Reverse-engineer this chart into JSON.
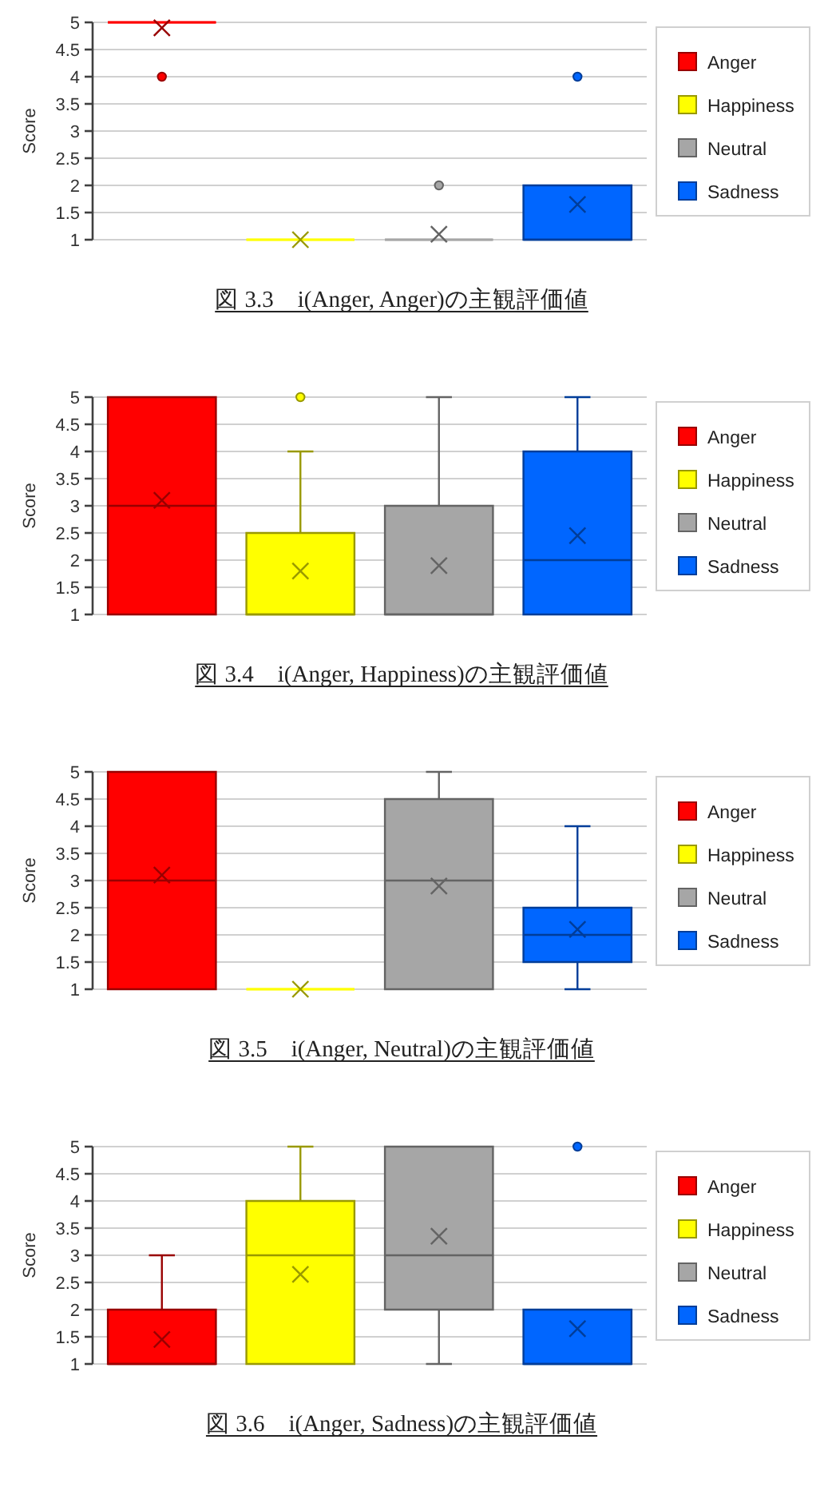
{
  "chart_data": [
    {
      "type": "box",
      "title": "図 3.3　i(Anger, Anger)の主観評価値",
      "ylabel": "Score",
      "categories": [
        null,
        null,
        null,
        null
      ],
      "ylim": [
        1,
        5
      ],
      "yticks": [
        1,
        1.5,
        2,
        2.5,
        3,
        3.5,
        4,
        4.5,
        5
      ],
      "grid": "y",
      "legend": "right",
      "marker": "cross",
      "series": [
        {
          "name": "Anger",
          "color": "#ff0000",
          "boxes": [
            {
              "low": 5,
              "q1": 5,
              "median": 5,
              "q3": 5,
              "high": 5,
              "mean": 4.9,
              "outliers": [
                4
              ]
            },
            null,
            null,
            null
          ]
        },
        {
          "name": "Happiness",
          "color": "#ffff00",
          "boxes": [
            null,
            {
              "low": 1,
              "q1": 1,
              "median": 1,
              "q3": 1,
              "high": 1,
              "mean": 1
            },
            null,
            null
          ]
        },
        {
          "name": "Neutral",
          "color": "#a6a6a6",
          "boxes": [
            null,
            null,
            {
              "low": 1,
              "q1": 1,
              "median": 1,
              "q3": 1,
              "high": 1,
              "mean": 1.1,
              "outliers": [
                2
              ]
            },
            null
          ]
        },
        {
          "name": "Sadness",
          "color": "#0066ff",
          "boxes": [
            null,
            null,
            null,
            {
              "low": 1,
              "q1": 1,
              "median": 1,
              "q3": 2,
              "high": 2,
              "mean": 1.65,
              "outliers": [
                4
              ]
            }
          ]
        }
      ]
    },
    {
      "type": "box",
      "title": "図 3.4　i(Anger, Happiness)の主観評価値",
      "ylabel": "Score",
      "categories": [
        null,
        null,
        null,
        null
      ],
      "ylim": [
        1,
        5
      ],
      "yticks": [
        1,
        1.5,
        2,
        2.5,
        3,
        3.5,
        4,
        4.5,
        5
      ],
      "grid": "y",
      "legend": "right",
      "marker": "cross",
      "series": [
        {
          "name": "Anger",
          "color": "#ff0000",
          "boxes": [
            {
              "low": 1,
              "q1": 1,
              "median": 3,
              "q3": 5,
              "high": 5,
              "mean": 3.1
            },
            null,
            null,
            null
          ]
        },
        {
          "name": "Happiness",
          "color": "#ffff00",
          "boxes": [
            null,
            {
              "low": 1,
              "q1": 1,
              "median": 1,
              "q3": 2.5,
              "high": 4,
              "mean": 1.8,
              "outliers": [
                5
              ]
            },
            null,
            null
          ]
        },
        {
          "name": "Neutral",
          "color": "#a6a6a6",
          "boxes": [
            null,
            null,
            {
              "low": 1,
              "q1": 1,
              "median": 1,
              "q3": 3,
              "high": 5,
              "mean": 1.9
            },
            null
          ]
        },
        {
          "name": "Sadness",
          "color": "#0066ff",
          "boxes": [
            null,
            null,
            null,
            {
              "low": 1,
              "q1": 1,
              "median": 2,
              "q3": 4,
              "high": 5,
              "mean": 2.45
            }
          ]
        }
      ]
    },
    {
      "type": "box",
      "title": "図 3.5　i(Anger, Neutral)の主観評価値",
      "ylabel": "Score",
      "categories": [
        null,
        null,
        null,
        null
      ],
      "ylim": [
        1,
        5
      ],
      "yticks": [
        1,
        1.5,
        2,
        2.5,
        3,
        3.5,
        4,
        4.5,
        5
      ],
      "grid": "y",
      "legend": "right",
      "marker": "cross",
      "series": [
        {
          "name": "Anger",
          "color": "#ff0000",
          "boxes": [
            {
              "low": 1,
              "q1": 1,
              "median": 3,
              "q3": 5,
              "high": 5,
              "mean": 3.1
            },
            null,
            null,
            null
          ]
        },
        {
          "name": "Happiness",
          "color": "#ffff00",
          "boxes": [
            null,
            {
              "low": 1,
              "q1": 1,
              "median": 1,
              "q3": 1,
              "high": 1,
              "mean": 1
            },
            null,
            null
          ]
        },
        {
          "name": "Neutral",
          "color": "#a6a6a6",
          "boxes": [
            null,
            null,
            {
              "low": 1,
              "q1": 1,
              "median": 3,
              "q3": 4.5,
              "high": 5,
              "mean": 2.9
            },
            null
          ]
        },
        {
          "name": "Sadness",
          "color": "#0066ff",
          "boxes": [
            null,
            null,
            null,
            {
              "low": 1,
              "q1": 1.5,
              "median": 2,
              "q3": 2.5,
              "high": 4,
              "mean": 2.1
            }
          ]
        }
      ]
    },
    {
      "type": "box",
      "title": "図 3.6　i(Anger, Sadness)の主観評価値",
      "ylabel": "Score",
      "categories": [
        null,
        null,
        null,
        null
      ],
      "ylim": [
        1,
        5
      ],
      "yticks": [
        1,
        1.5,
        2,
        2.5,
        3,
        3.5,
        4,
        4.5,
        5
      ],
      "grid": "y",
      "legend": "right",
      "marker": "cross",
      "series": [
        {
          "name": "Anger",
          "color": "#ff0000",
          "boxes": [
            {
              "low": 1,
              "q1": 1,
              "median": 1,
              "q3": 2,
              "high": 3,
              "mean": 1.45
            },
            null,
            null,
            null
          ]
        },
        {
          "name": "Happiness",
          "color": "#ffff00",
          "boxes": [
            null,
            {
              "low": 1,
              "q1": 1,
              "median": 3,
              "q3": 4,
              "high": 5,
              "mean": 2.65
            },
            null,
            null
          ]
        },
        {
          "name": "Neutral",
          "color": "#a6a6a6",
          "boxes": [
            null,
            null,
            {
              "low": 1,
              "q1": 2,
              "median": 3,
              "q3": 5,
              "high": 5,
              "mean": 3.35
            },
            null
          ]
        },
        {
          "name": "Sadness",
          "color": "#0066ff",
          "boxes": [
            null,
            null,
            null,
            {
              "low": 1,
              "q1": 1,
              "median": 1,
              "q3": 2,
              "high": 2,
              "mean": 1.65,
              "outliers": [
                5
              ]
            }
          ]
        }
      ]
    }
  ]
}
